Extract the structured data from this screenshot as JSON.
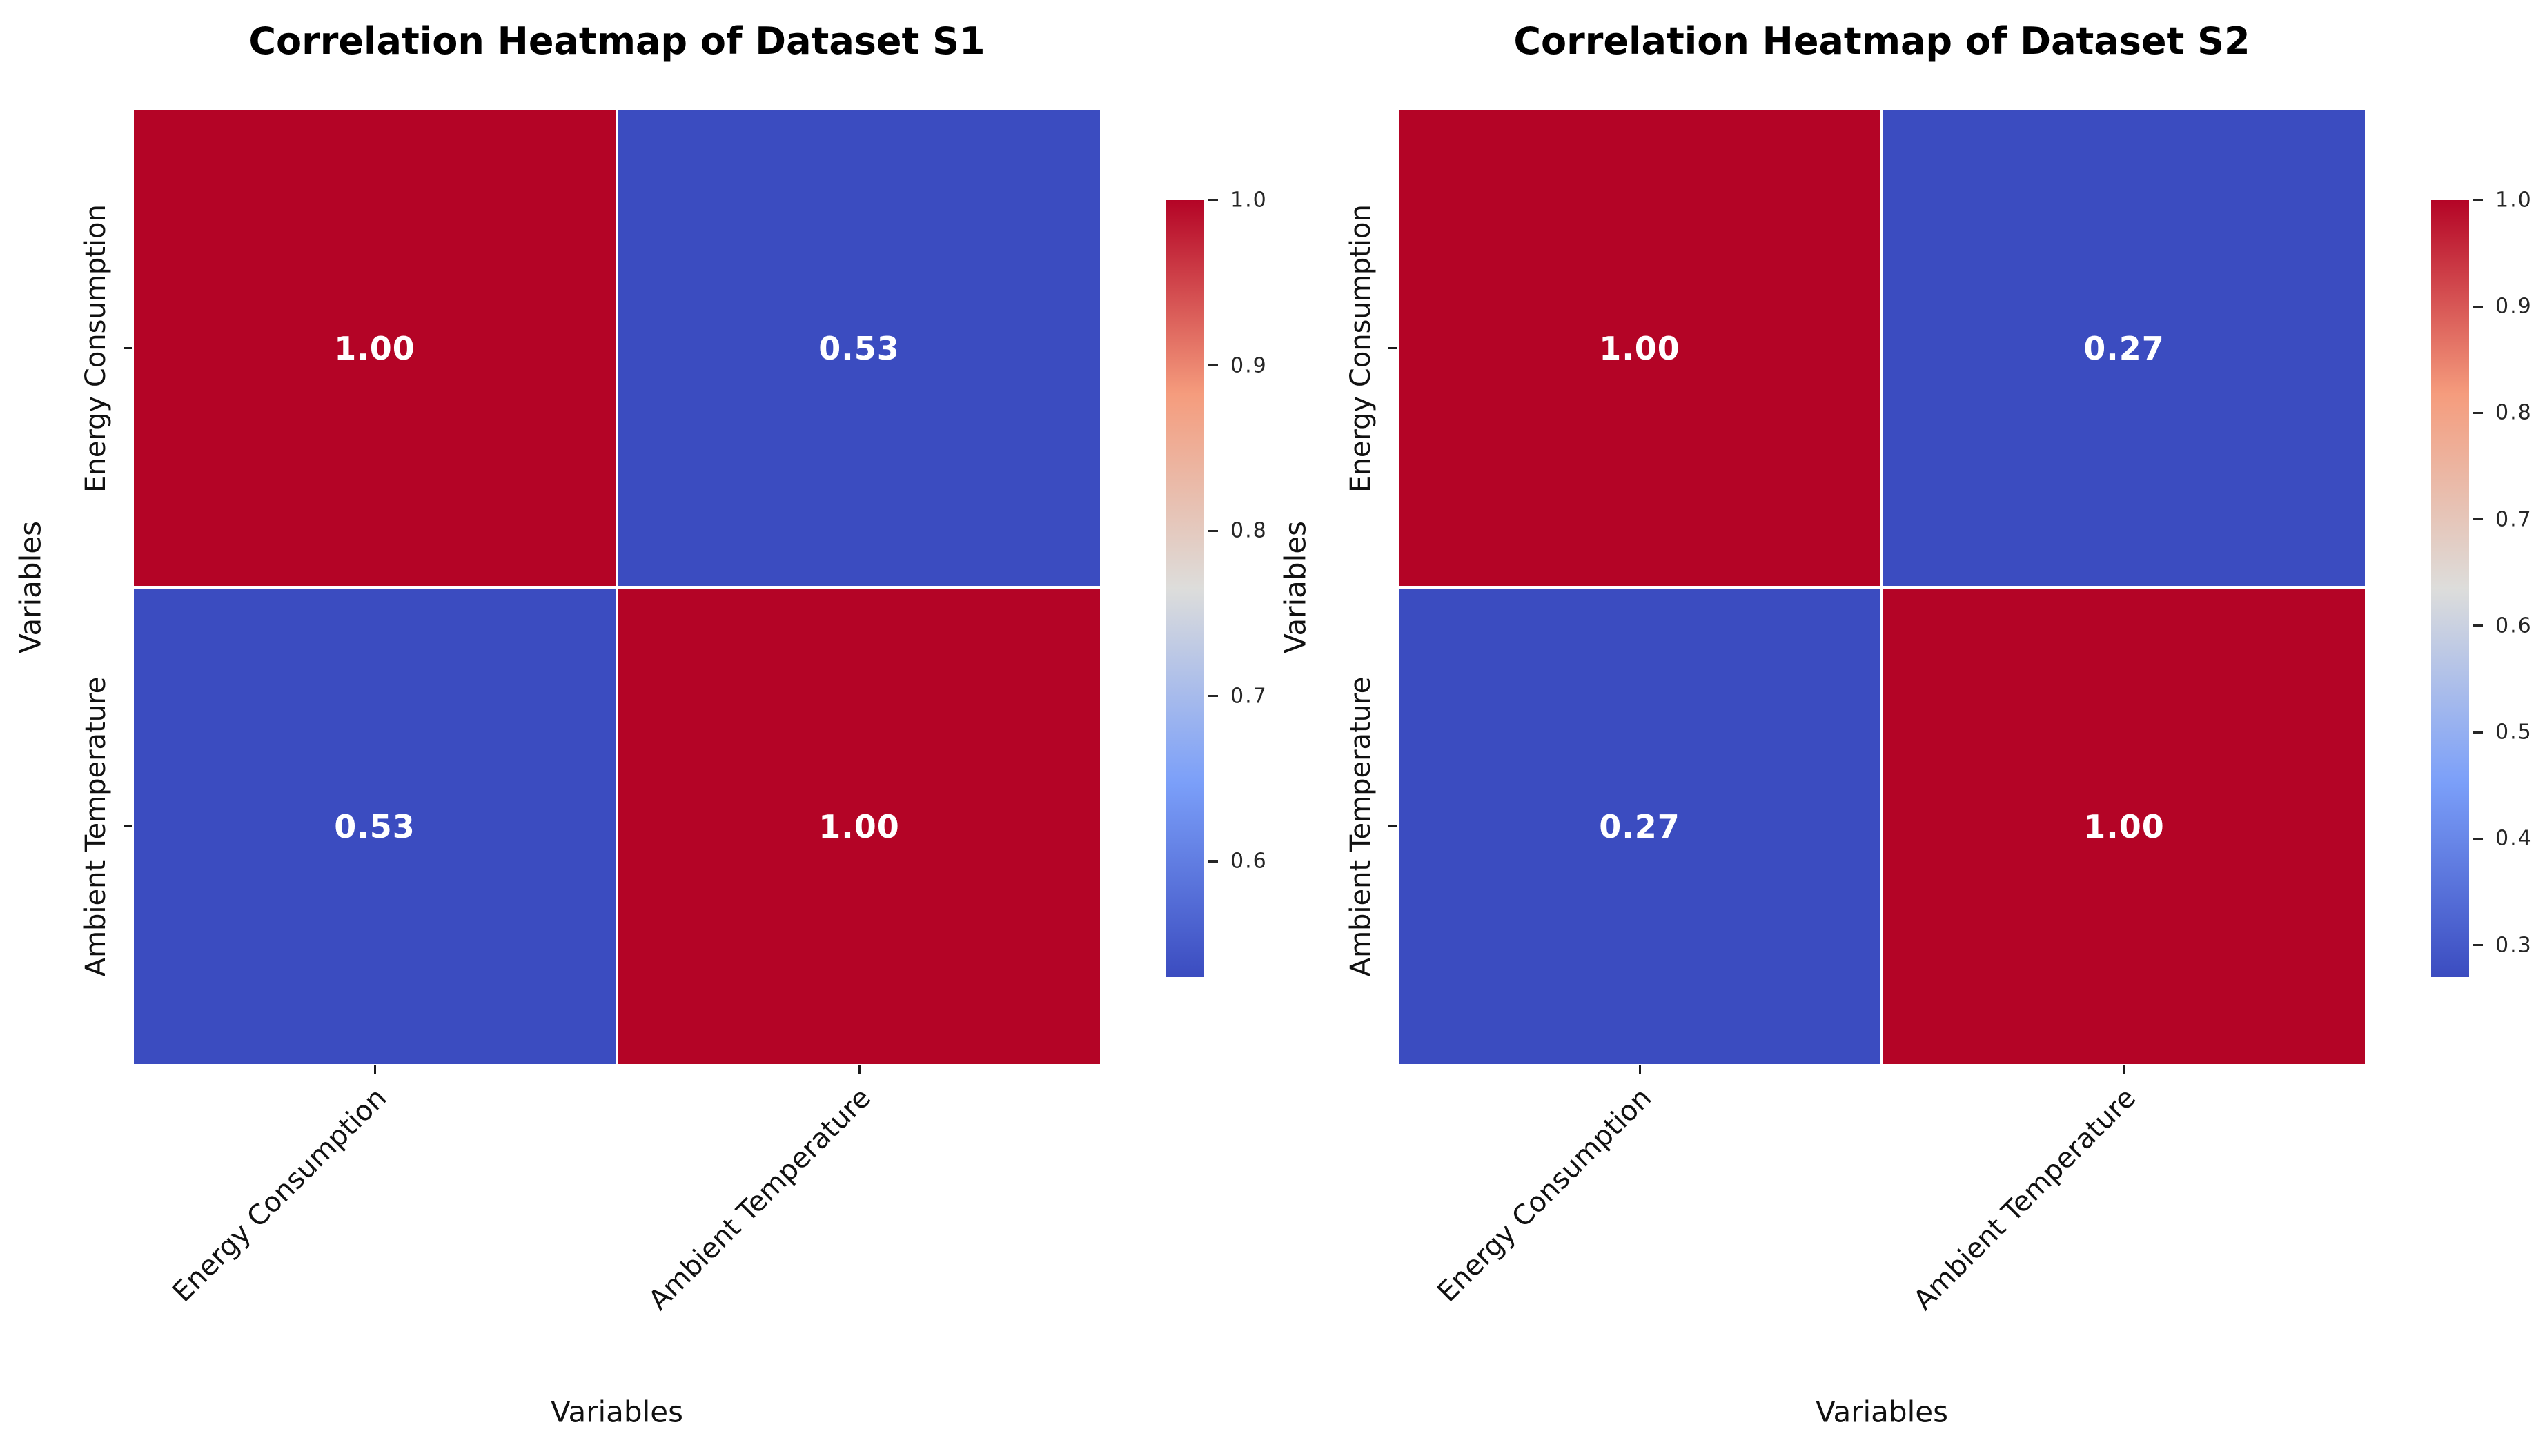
{
  "figure": {
    "background": "#ffffff"
  },
  "colors": {
    "cell_high": "#b40426",
    "cell_low": "#3b4cc0",
    "annotation_text": "#ffffff",
    "title_text": "#000000",
    "tick_text": "#262626",
    "coolwarm_stops": [
      "#3b4cc0",
      "#7b9ff9",
      "#dddddb",
      "#f59c7d",
      "#b40426"
    ]
  },
  "chart_data": [
    {
      "type": "heatmap",
      "title": "Correlation Heatmap of Dataset S1",
      "xlabel": "Variables",
      "ylabel": "Variables",
      "x_categories": [
        "Energy Consumption",
        "Ambient Temperature"
      ],
      "y_categories": [
        "Energy Consumption",
        "Ambient Temperature"
      ],
      "matrix": [
        [
          1.0,
          0.53
        ],
        [
          0.53,
          1.0
        ]
      ],
      "cell_labels": [
        [
          "1.00",
          "0.53"
        ],
        [
          "0.53",
          "1.00"
        ]
      ],
      "colormap": "coolwarm",
      "vmin": 0.53,
      "vmax": 1.0,
      "colorbar_ticks": [
        1.0,
        0.9,
        0.8,
        0.7,
        0.6
      ],
      "colorbar_tick_labels": [
        "1.0",
        "0.9",
        "0.8",
        "0.7",
        "0.6"
      ],
      "legend_position": "right-colorbar",
      "grid": false
    },
    {
      "type": "heatmap",
      "title": "Correlation Heatmap of Dataset S2",
      "xlabel": "Variables",
      "ylabel": "Variables",
      "x_categories": [
        "Energy Consumption",
        "Ambient Temperature"
      ],
      "y_categories": [
        "Energy Consumption",
        "Ambient Temperature"
      ],
      "matrix": [
        [
          1.0,
          0.27
        ],
        [
          0.27,
          1.0
        ]
      ],
      "cell_labels": [
        [
          "1.00",
          "0.27"
        ],
        [
          "0.27",
          "1.00"
        ]
      ],
      "colormap": "coolwarm",
      "vmin": 0.27,
      "vmax": 1.0,
      "colorbar_ticks": [
        1.0,
        0.9,
        0.8,
        0.7,
        0.6,
        0.5,
        0.4,
        0.3
      ],
      "colorbar_tick_labels": [
        "1.0",
        "0.9",
        "0.8",
        "0.7",
        "0.6",
        "0.5",
        "0.4",
        "0.3"
      ],
      "legend_position": "right-colorbar",
      "grid": false
    }
  ]
}
